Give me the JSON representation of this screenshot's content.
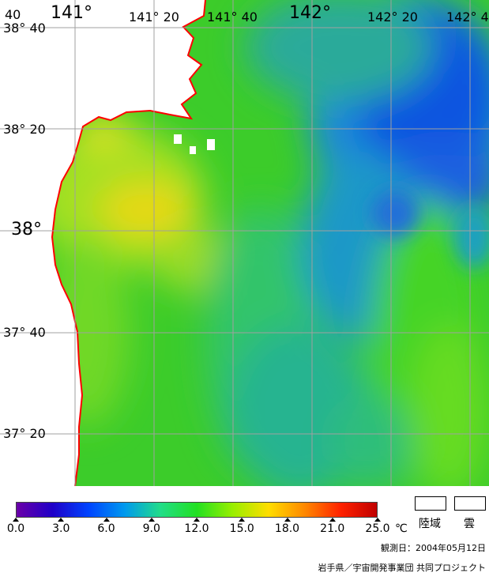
{
  "map": {
    "longitude_labels": [
      {
        "text": "141°",
        "size": "big"
      },
      {
        "text": "141° 20",
        "size": "small"
      },
      {
        "text": "141° 40",
        "size": "small"
      },
      {
        "text": "142°",
        "size": "big"
      },
      {
        "text": "142° 20",
        "size": "small"
      },
      {
        "text": "142° 4",
        "size": "small"
      }
    ],
    "latitude_labels": [
      {
        "text": "38° 40",
        "size": "small"
      },
      {
        "text": "38° 20",
        "size": "small"
      },
      {
        "text": "38°",
        "size": "big"
      },
      {
        "text": "37° 40",
        "size": "small"
      },
      {
        "text": "37° 20",
        "size": "small"
      }
    ],
    "corner_label": "40",
    "colors": {
      "coastline": "#ff0000",
      "grid": "#a0a0a0",
      "land": "#ffffff",
      "sea_base": "#33cc22"
    }
  },
  "legend": {
    "ticks": [
      "0.0",
      "3.0",
      "6.0",
      "9.0",
      "12.0",
      "15.0",
      "18.0",
      "21.0",
      "25.0"
    ],
    "unit": "℃",
    "land_label": "陸域",
    "cloud_label": "雲",
    "observation_date": "観測日：2004年05月12日",
    "credit": "岩手県／宇宙開発事業団 共同プロジェクト",
    "colorbar_stops": [
      "#6a00a8",
      "#1f00c8",
      "#0044ff",
      "#0099ee",
      "#22dd88",
      "#22e022",
      "#99ee00",
      "#ffdd00",
      "#ff8800",
      "#ff2200",
      "#c00000"
    ]
  }
}
